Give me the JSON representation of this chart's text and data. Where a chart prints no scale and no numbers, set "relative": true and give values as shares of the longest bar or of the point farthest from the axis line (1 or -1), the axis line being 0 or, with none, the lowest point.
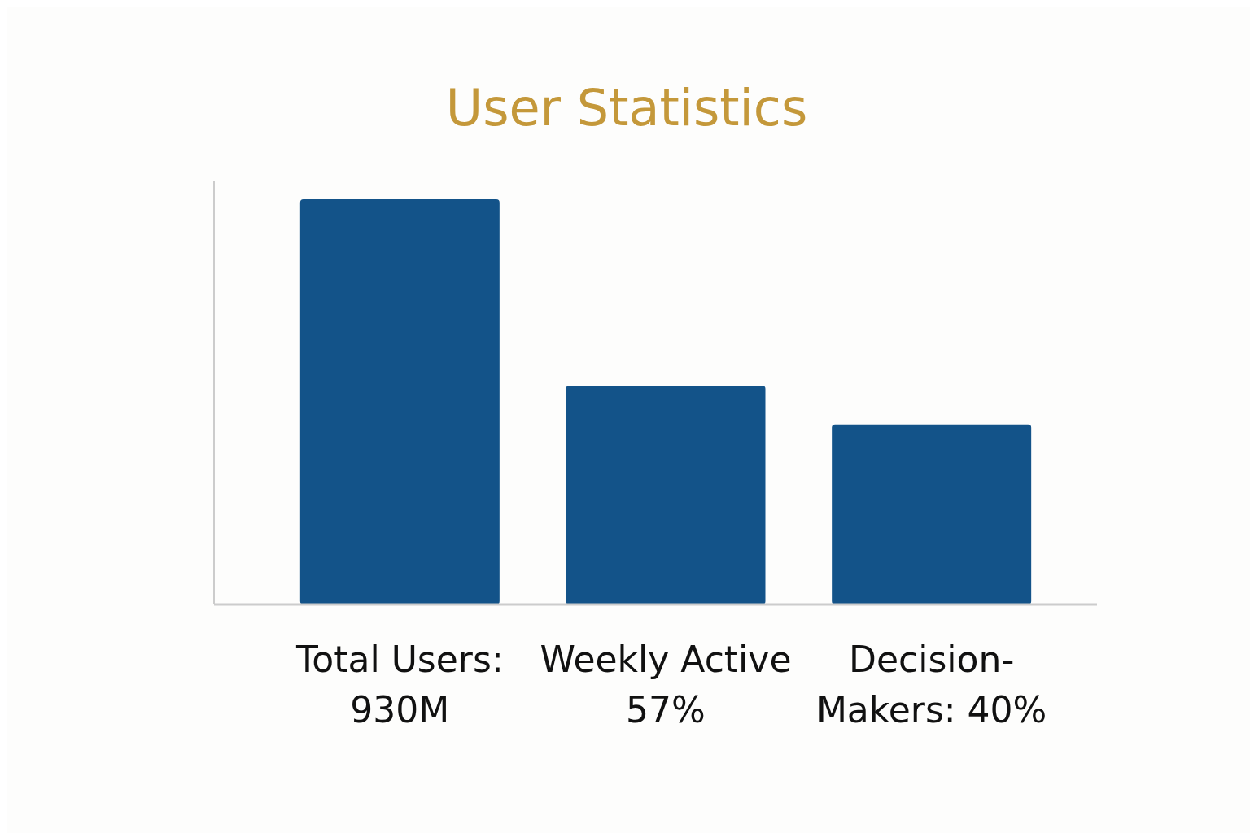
{
  "chart_data": {
    "type": "bar",
    "title": "User Statistics",
    "relative": true,
    "categories": [
      "Total Users: 930M",
      "Weekly Active 57%",
      "Decision-Makers: 40%"
    ],
    "values": [
      1,
      0.54,
      0.444
    ],
    "color": "#135389"
  }
}
